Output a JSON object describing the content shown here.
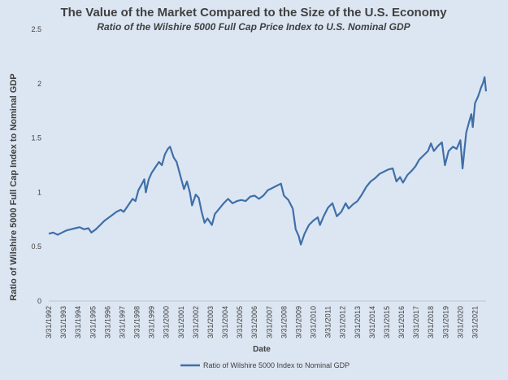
{
  "chart_data": {
    "type": "line",
    "title": "The Value of the Market Compared to the Size of the U.S. Economy",
    "subtitle": "Ratio of the Wilshire 5000 Full Cap Price Index to U.S. Nominal GDP",
    "xlabel": "Date",
    "ylabel": "Ratio of Wilshire 5000 Full Cap Index to Nominal GDP",
    "ylim": [
      0,
      2.5
    ],
    "yticks": [
      "0",
      "0.5",
      "1",
      "1.5",
      "2",
      "2.5"
    ],
    "xlim": [
      1992.0,
      2021.75
    ],
    "xtick_labels": [
      "3/31/1992",
      "3/31/1993",
      "3/31/1994",
      "3/31/1995",
      "3/31/1996",
      "3/31/1997",
      "3/31/1998",
      "3/31/1999",
      "3/31/2000",
      "3/31/2001",
      "3/31/2002",
      "3/31/2003",
      "3/31/2004",
      "3/31/2005",
      "3/31/2006",
      "3/31/2007",
      "3/31/2008",
      "3/31/2009",
      "3/31/2010",
      "3/31/2011",
      "3/31/2012",
      "3/31/2013",
      "3/31/2014",
      "3/31/2015",
      "3/31/2016",
      "3/31/2017",
      "3/31/2018",
      "3/31/2019",
      "3/31/2020",
      "3/31/2021"
    ],
    "grid": false,
    "legend": "bottom",
    "series": [
      {
        "name": "Ratio of Wilshire 5000 Index to Nominal GDP",
        "color": "#3f6fa8",
        "points": [
          [
            1992.0,
            0.62
          ],
          [
            1992.3,
            0.63
          ],
          [
            1992.6,
            0.61
          ],
          [
            1992.9,
            0.63
          ],
          [
            1993.2,
            0.65
          ],
          [
            1993.5,
            0.66
          ],
          [
            1993.8,
            0.67
          ],
          [
            1994.1,
            0.68
          ],
          [
            1994.4,
            0.66
          ],
          [
            1994.7,
            0.67
          ],
          [
            1994.9,
            0.63
          ],
          [
            1995.2,
            0.66
          ],
          [
            1995.5,
            0.7
          ],
          [
            1995.8,
            0.74
          ],
          [
            1996.0,
            0.76
          ],
          [
            1996.3,
            0.79
          ],
          [
            1996.6,
            0.82
          ],
          [
            1996.9,
            0.84
          ],
          [
            1997.1,
            0.82
          ],
          [
            1997.4,
            0.88
          ],
          [
            1997.7,
            0.94
          ],
          [
            1997.9,
            0.92
          ],
          [
            1998.1,
            1.02
          ],
          [
            1998.35,
            1.08
          ],
          [
            1998.5,
            1.12
          ],
          [
            1998.6,
            1.0
          ],
          [
            1998.8,
            1.12
          ],
          [
            1999.0,
            1.18
          ],
          [
            1999.2,
            1.22
          ],
          [
            1999.5,
            1.28
          ],
          [
            1999.7,
            1.25
          ],
          [
            1999.9,
            1.35
          ],
          [
            2000.1,
            1.4
          ],
          [
            2000.25,
            1.42
          ],
          [
            2000.5,
            1.32
          ],
          [
            2000.7,
            1.28
          ],
          [
            2000.9,
            1.18
          ],
          [
            2001.2,
            1.03
          ],
          [
            2001.4,
            1.1
          ],
          [
            2001.6,
            1.0
          ],
          [
            2001.75,
            0.88
          ],
          [
            2002.0,
            0.98
          ],
          [
            2002.2,
            0.95
          ],
          [
            2002.4,
            0.82
          ],
          [
            2002.6,
            0.72
          ],
          [
            2002.8,
            0.76
          ],
          [
            2003.1,
            0.7
          ],
          [
            2003.3,
            0.8
          ],
          [
            2003.6,
            0.85
          ],
          [
            2003.9,
            0.9
          ],
          [
            2004.2,
            0.94
          ],
          [
            2004.5,
            0.9
          ],
          [
            2004.8,
            0.92
          ],
          [
            2005.1,
            0.93
          ],
          [
            2005.4,
            0.92
          ],
          [
            2005.7,
            0.96
          ],
          [
            2006.0,
            0.97
          ],
          [
            2006.3,
            0.94
          ],
          [
            2006.6,
            0.97
          ],
          [
            2006.9,
            1.02
          ],
          [
            2007.2,
            1.04
          ],
          [
            2007.5,
            1.06
          ],
          [
            2007.8,
            1.08
          ],
          [
            2008.0,
            0.97
          ],
          [
            2008.3,
            0.93
          ],
          [
            2008.6,
            0.85
          ],
          [
            2008.8,
            0.66
          ],
          [
            2009.0,
            0.6
          ],
          [
            2009.15,
            0.52
          ],
          [
            2009.4,
            0.62
          ],
          [
            2009.7,
            0.7
          ],
          [
            2010.0,
            0.74
          ],
          [
            2010.3,
            0.77
          ],
          [
            2010.45,
            0.7
          ],
          [
            2010.7,
            0.78
          ],
          [
            2011.0,
            0.86
          ],
          [
            2011.3,
            0.9
          ],
          [
            2011.6,
            0.78
          ],
          [
            2011.9,
            0.82
          ],
          [
            2012.2,
            0.9
          ],
          [
            2012.4,
            0.85
          ],
          [
            2012.7,
            0.89
          ],
          [
            2013.0,
            0.92
          ],
          [
            2013.3,
            0.98
          ],
          [
            2013.6,
            1.05
          ],
          [
            2013.9,
            1.1
          ],
          [
            2014.2,
            1.13
          ],
          [
            2014.5,
            1.17
          ],
          [
            2014.8,
            1.19
          ],
          [
            2015.1,
            1.21
          ],
          [
            2015.4,
            1.22
          ],
          [
            2015.65,
            1.1
          ],
          [
            2015.9,
            1.14
          ],
          [
            2016.1,
            1.09
          ],
          [
            2016.4,
            1.16
          ],
          [
            2016.7,
            1.2
          ],
          [
            2016.95,
            1.24
          ],
          [
            2017.2,
            1.3
          ],
          [
            2017.5,
            1.34
          ],
          [
            2017.8,
            1.38
          ],
          [
            2018.0,
            1.45
          ],
          [
            2018.2,
            1.38
          ],
          [
            2018.5,
            1.43
          ],
          [
            2018.75,
            1.46
          ],
          [
            2018.95,
            1.25
          ],
          [
            2019.2,
            1.38
          ],
          [
            2019.5,
            1.42
          ],
          [
            2019.75,
            1.4
          ],
          [
            2020.0,
            1.48
          ],
          [
            2020.15,
            1.22
          ],
          [
            2020.4,
            1.55
          ],
          [
            2020.6,
            1.65
          ],
          [
            2020.75,
            1.72
          ],
          [
            2020.85,
            1.6
          ],
          [
            2021.0,
            1.82
          ],
          [
            2021.2,
            1.88
          ],
          [
            2021.4,
            1.96
          ],
          [
            2021.55,
            2.01
          ],
          [
            2021.65,
            2.06
          ],
          [
            2021.75,
            1.93
          ]
        ]
      }
    ]
  }
}
